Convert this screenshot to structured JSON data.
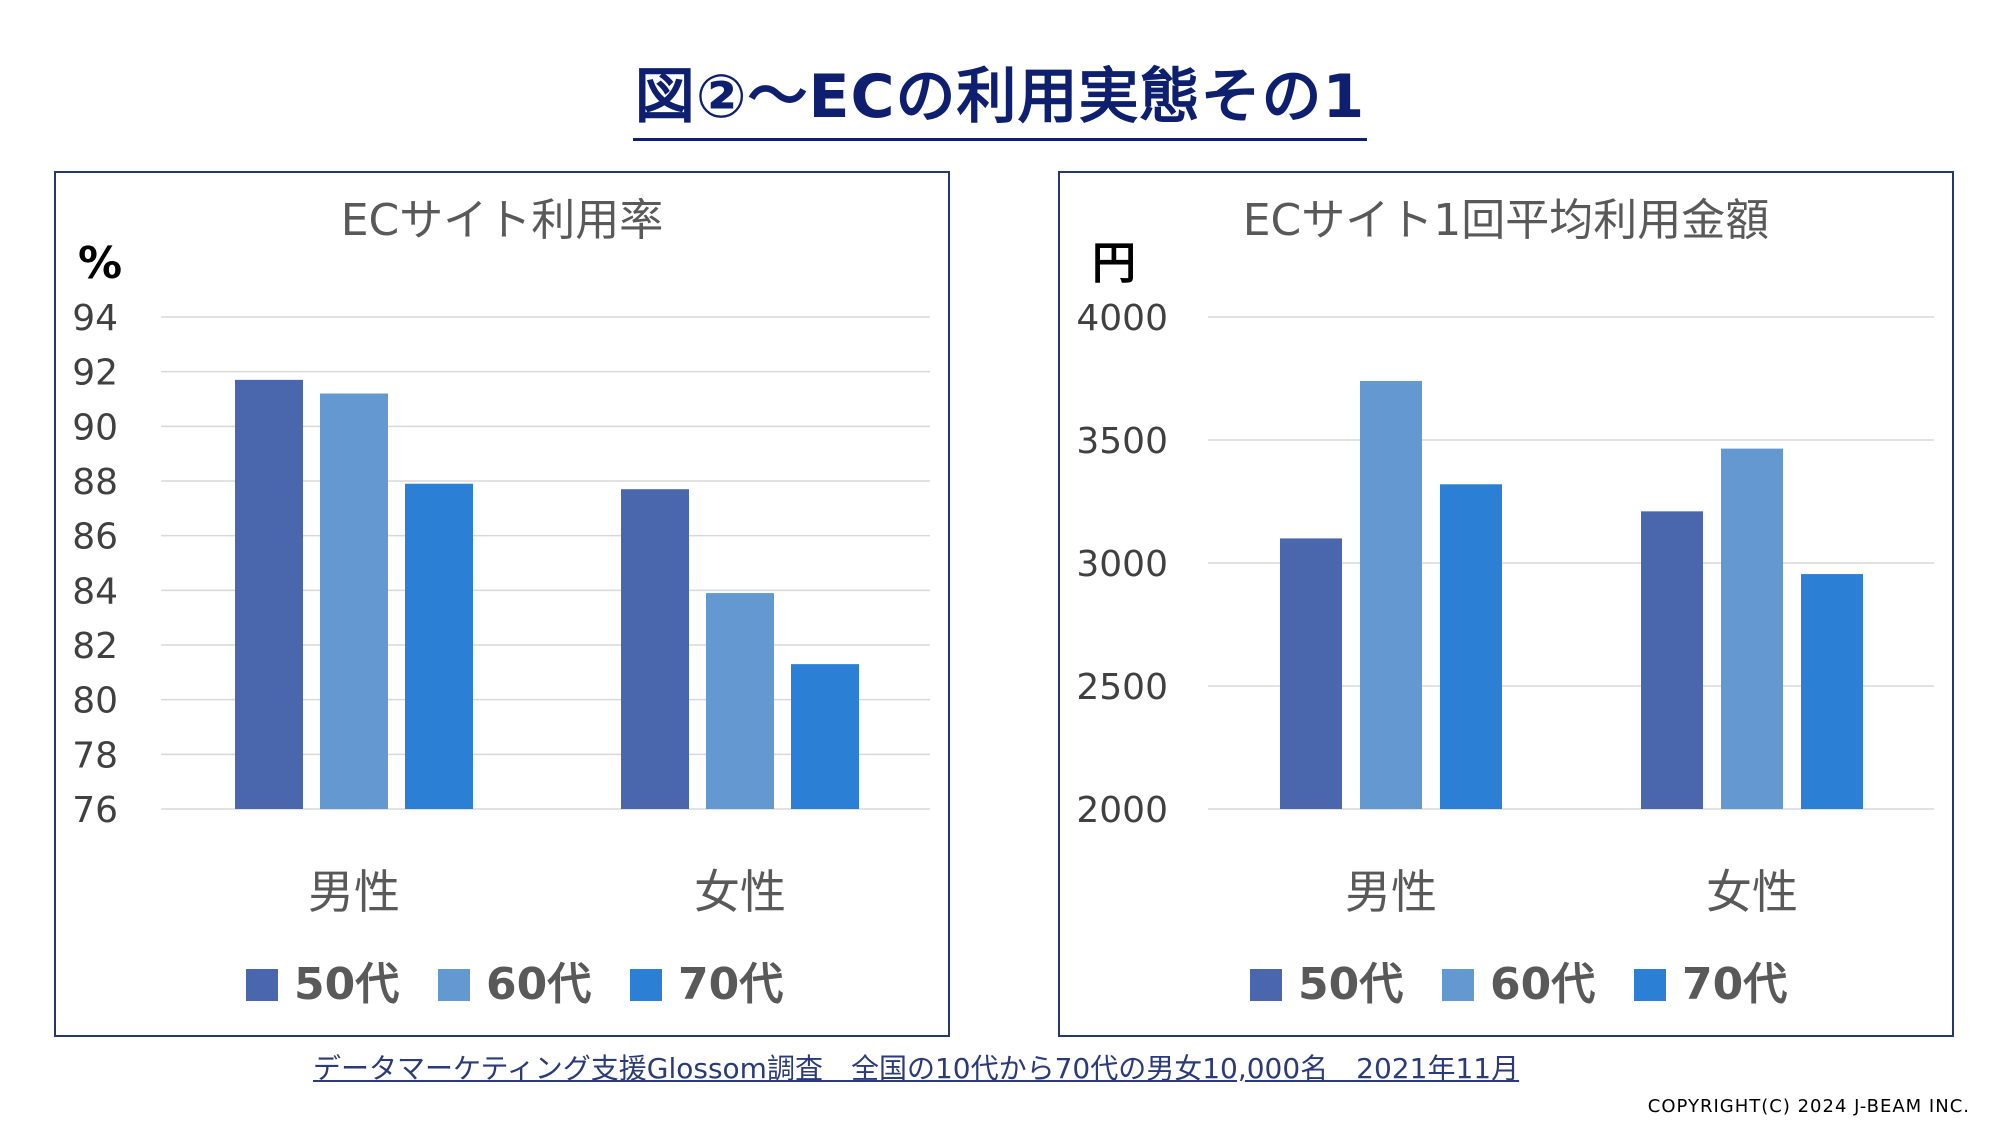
{
  "page": {
    "title": "図②～ECの利用実態その1",
    "source": "データマーケティング支援Glossom調査　全国の10代から70代の男女10,000名　2021年11月",
    "copyright": "COPYRIGHT(C) 2024  J-BEAM  INC."
  },
  "chart_data": [
    {
      "type": "bar",
      "title": "ECサイト利用率",
      "ylabel": "%",
      "categories": [
        "男性",
        "女性"
      ],
      "ylim": [
        76,
        94
      ],
      "yticks": [
        94,
        92,
        90,
        88,
        86,
        84,
        82,
        80,
        78,
        76
      ],
      "grid": true,
      "legend_position": "bottom",
      "series": [
        {
          "name": "50代",
          "color": "#4a67ae",
          "values": [
            91.7,
            87.7
          ]
        },
        {
          "name": "60代",
          "color": "#6399d0",
          "values": [
            91.2,
            83.9
          ]
        },
        {
          "name": "70代",
          "color": "#2b7fd5",
          "values": [
            87.9,
            81.3
          ]
        }
      ]
    },
    {
      "type": "bar",
      "title": "ECサイト1回平均利用金額",
      "ylabel": "円",
      "categories": [
        "男性",
        "女性"
      ],
      "ylim": [
        2000,
        4000
      ],
      "yticks": [
        4000,
        3500,
        3000,
        2500,
        2000
      ],
      "grid": true,
      "legend_position": "bottom",
      "series": [
        {
          "name": "50代",
          "color": "#4a67ae",
          "values": [
            3100,
            3210
          ]
        },
        {
          "name": "60代",
          "color": "#6399d0",
          "values": [
            3740,
            3465
          ]
        },
        {
          "name": "70代",
          "color": "#2b7fd5",
          "values": [
            3320,
            2955
          ]
        }
      ]
    }
  ]
}
